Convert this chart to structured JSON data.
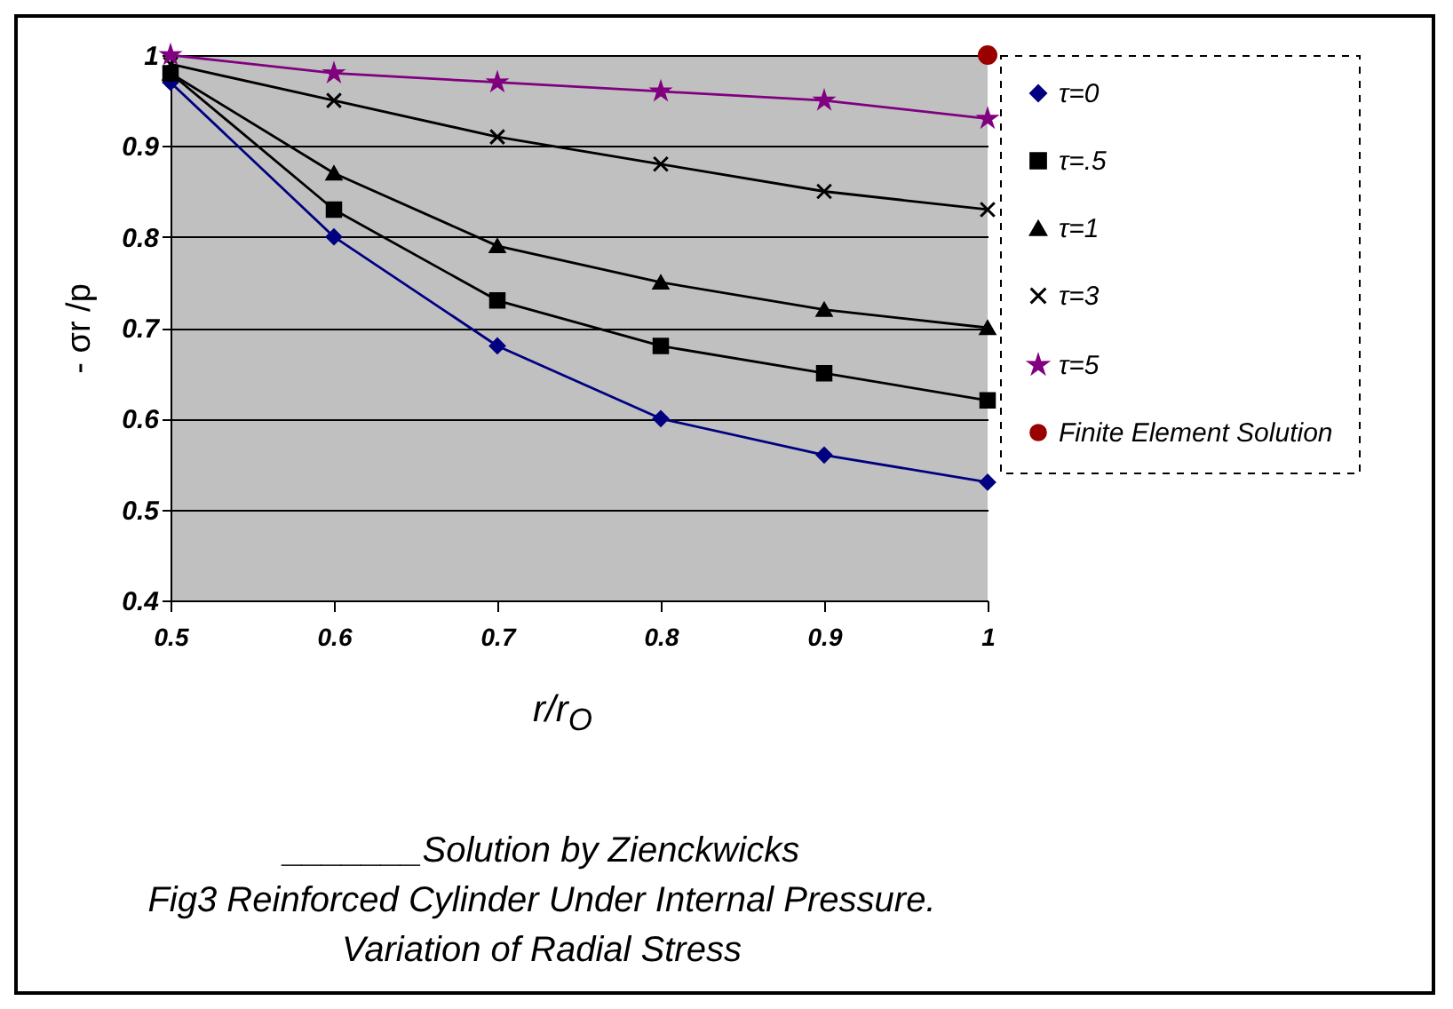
{
  "chart_data": {
    "type": "line",
    "xlabel": "r/r$_{O}$",
    "ylabel": "- σr /p",
    "x": [
      0.5,
      0.6,
      0.7,
      0.8,
      0.9,
      1
    ],
    "series": [
      {
        "name": "τ=0",
        "color": "#000080",
        "marker": "diamond",
        "values": [
          0.97,
          0.8,
          0.68,
          0.6,
          0.56,
          0.53
        ]
      },
      {
        "name": "τ=.5",
        "color": "#000000",
        "marker": "square",
        "values": [
          0.98,
          0.83,
          0.73,
          0.68,
          0.65,
          0.62
        ]
      },
      {
        "name": "τ=1",
        "color": "#000000",
        "marker": "triangle",
        "values": [
          0.98,
          0.87,
          0.79,
          0.75,
          0.72,
          0.7
        ]
      },
      {
        "name": "τ=3",
        "color": "#000000",
        "marker": "cross",
        "values": [
          0.99,
          0.95,
          0.91,
          0.88,
          0.85,
          0.83
        ]
      },
      {
        "name": "τ=5",
        "color": "#800080",
        "marker": "star",
        "values": [
          1.0,
          0.98,
          0.97,
          0.96,
          0.95,
          0.93
        ]
      },
      {
        "name": "Finite Element Solution",
        "type": "scatter",
        "color": "#990000",
        "marker": "circle",
        "x": [
          1
        ],
        "values": [
          1.0
        ]
      }
    ],
    "xlim": [
      0.5,
      1
    ],
    "xticks": [
      0.5,
      0.6,
      0.7,
      0.8,
      0.9,
      1
    ],
    "ylim": [
      0.4,
      1
    ],
    "yticks": [
      0.4,
      0.5,
      0.6,
      0.7,
      0.8,
      0.9,
      1
    ],
    "grid": "y",
    "legend": "right",
    "annotations": [
      "_______Solution by Zienckwicks",
      "Fig3 Reinforced Cylinder Under Internal Pressure. Variation of Radial Stress"
    ]
  }
}
